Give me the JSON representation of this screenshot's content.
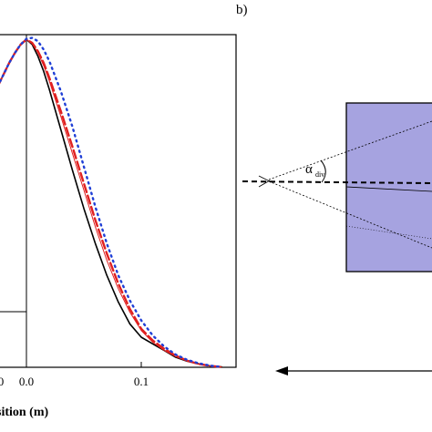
{
  "panel_b": {
    "label": "b)",
    "alpha_symbol": "α",
    "alpha_subscript": "div"
  },
  "chart_data": {
    "type": "line",
    "xlabel": "sition (m)",
    "ylabel": "",
    "title": "",
    "xlim": [
      -0.22,
      0.18
    ],
    "ylim": [
      0,
      1.0
    ],
    "xticks": [
      {
        "value": 0.0,
        "label": "0.0"
      },
      {
        "value": 0.1,
        "label": "0.1"
      }
    ],
    "partial_tick_label": {
      "value": -0.0,
      "label": "0"
    },
    "series": [
      {
        "style": "solid-black",
        "color": "#000000",
        "x": [
          -0.025,
          -0.02,
          -0.015,
          -0.01,
          -0.005,
          0.0,
          0.005,
          0.01,
          0.015,
          0.02,
          0.03,
          0.04,
          0.05,
          0.06,
          0.07,
          0.08,
          0.09,
          0.1,
          0.11,
          0.12,
          0.13,
          0.14,
          0.15,
          0.16,
          0.17
        ],
        "y": [
          0.84,
          0.875,
          0.91,
          0.94,
          0.965,
          0.98,
          0.965,
          0.93,
          0.885,
          0.83,
          0.71,
          0.59,
          0.475,
          0.37,
          0.275,
          0.195,
          0.13,
          0.09,
          0.07,
          0.05,
          0.03,
          0.018,
          0.01,
          0.004,
          0.001
        ]
      },
      {
        "style": "dashed-red",
        "color": "#e02020",
        "x": [
          -0.025,
          -0.02,
          -0.015,
          -0.01,
          -0.005,
          0.0,
          0.005,
          0.01,
          0.015,
          0.02,
          0.03,
          0.04,
          0.05,
          0.06,
          0.07,
          0.08,
          0.09,
          0.1,
          0.11,
          0.12,
          0.13,
          0.14,
          0.15,
          0.16,
          0.17
        ],
        "y": [
          0.84,
          0.875,
          0.91,
          0.94,
          0.965,
          0.98,
          0.97,
          0.945,
          0.91,
          0.865,
          0.765,
          0.66,
          0.55,
          0.44,
          0.34,
          0.25,
          0.175,
          0.115,
          0.08,
          0.055,
          0.035,
          0.02,
          0.01,
          0.004,
          0.001
        ]
      },
      {
        "style": "thin-red",
        "color": "#e02020",
        "x": [
          -0.025,
          -0.02,
          -0.015,
          -0.01,
          -0.005,
          0.0,
          0.005,
          0.01,
          0.015,
          0.02,
          0.03,
          0.04,
          0.05,
          0.06,
          0.07,
          0.08,
          0.09,
          0.1,
          0.11,
          0.12,
          0.13,
          0.14,
          0.15,
          0.16,
          0.17
        ],
        "y": [
          0.84,
          0.875,
          0.91,
          0.94,
          0.965,
          0.98,
          0.968,
          0.94,
          0.902,
          0.855,
          0.75,
          0.64,
          0.53,
          0.42,
          0.32,
          0.235,
          0.165,
          0.11,
          0.075,
          0.05,
          0.032,
          0.018,
          0.009,
          0.004,
          0.001
        ]
      },
      {
        "style": "dotted-blue",
        "color": "#1f3fd6",
        "x": [
          -0.025,
          -0.02,
          -0.015,
          -0.01,
          -0.005,
          0.0,
          0.005,
          0.01,
          0.015,
          0.02,
          0.03,
          0.04,
          0.05,
          0.06,
          0.07,
          0.08,
          0.09,
          0.1,
          0.11,
          0.12,
          0.13,
          0.14,
          0.15,
          0.16,
          0.17
        ],
        "y": [
          0.84,
          0.875,
          0.91,
          0.94,
          0.965,
          0.982,
          0.985,
          0.975,
          0.95,
          0.915,
          0.825,
          0.72,
          0.6,
          0.48,
          0.37,
          0.275,
          0.2,
          0.14,
          0.095,
          0.062,
          0.038,
          0.022,
          0.012,
          0.005,
          0.001
        ]
      }
    ]
  }
}
